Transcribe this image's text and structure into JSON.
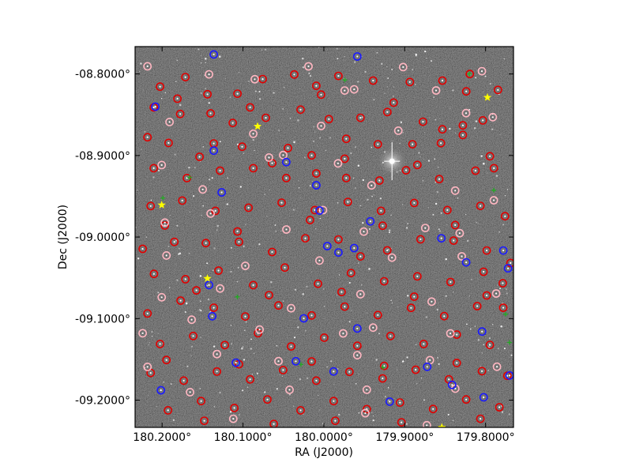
{
  "chart_data": {
    "type": "scatter",
    "title": "",
    "xlabel": "RA (J2000)",
    "ylabel": "Dec (J2000)",
    "xlim": [
      180.2334,
      179.7655
    ],
    "ylim": [
      -9.2334,
      -8.7665
    ],
    "x_ticks": [
      {
        "value": 180.2,
        "label": "180.2000°"
      },
      {
        "value": 180.1,
        "label": "180.1000°"
      },
      {
        "value": 180.0,
        "label": "180.0000°"
      },
      {
        "value": 179.9,
        "label": "179.9000°"
      },
      {
        "value": 179.8,
        "label": "179.8000°"
      }
    ],
    "y_ticks": [
      {
        "value": -8.8,
        "label": "-08.8000°"
      },
      {
        "value": -8.9,
        "label": "-08.9000°"
      },
      {
        "value": -9.0,
        "label": "-09.0000°"
      },
      {
        "value": -9.1,
        "label": "-09.1000°"
      },
      {
        "value": -9.2,
        "label": "-09.2000°"
      }
    ],
    "grid": false,
    "background": "star field image (grayscale)",
    "colors": {
      "red": "#e00000",
      "pink": "#ffb6c1",
      "blue": "#1a1aff",
      "green": "#22aa22",
      "yellow": "#ffff00",
      "white": "#ffffff"
    },
    "series": [
      {
        "marker": "circle",
        "color": "red",
        "points": [
          [
            180.2025,
            -8.8156
          ],
          [
            180.1712,
            -8.8039
          ],
          [
            180.1439,
            -8.8249
          ],
          [
            180.1068,
            -8.8242
          ],
          [
            180.0756,
            -8.8063
          ],
          [
            180.0366,
            -8.8007
          ],
          [
            180.0093,
            -8.8145
          ],
          [
            179.982,
            -8.8024
          ],
          [
            179.9391,
            -8.8082
          ],
          [
            179.8937,
            -8.8099
          ],
          [
            179.8534,
            -8.8082
          ],
          [
            179.8195,
            -8.8001
          ],
          [
            179.7847,
            -8.8196
          ],
          [
            180.2103,
            -8.841
          ],
          [
            180.1776,
            -8.8491
          ],
          [
            180.14,
            -8.8484
          ],
          [
            180.1127,
            -8.8601
          ],
          [
            180.0717,
            -8.8538
          ],
          [
            180.0288,
            -8.8438
          ],
          [
            179.9938,
            -8.8554
          ],
          [
            179.9547,
            -8.8538
          ],
          [
            179.9215,
            -8.8467
          ],
          [
            179.8774,
            -8.8586
          ],
          [
            179.8534,
            -8.8679
          ],
          [
            179.8281,
            -8.8631
          ],
          [
            179.8034,
            -8.857
          ],
          [
            180.2181,
            -8.8776
          ],
          [
            180.192,
            -8.8846
          ],
          [
            180.1361,
            -8.8853
          ],
          [
            180.101,
            -8.8892
          ],
          [
            180.0444,
            -8.8909
          ],
          [
            180.0151,
            -8.8999
          ],
          [
            179.9723,
            -8.8795
          ],
          [
            179.9332,
            -8.8862
          ],
          [
            179.8904,
            -8.8862
          ],
          [
            179.8553,
            -8.8849
          ],
          [
            179.8281,
            -8.8749
          ],
          [
            180.2103,
            -8.9156
          ],
          [
            180.1693,
            -8.9277
          ],
          [
            180.1283,
            -8.9186
          ],
          [
            180.0873,
            -8.9156
          ],
          [
            180.0464,
            -8.9277
          ],
          [
            180.0093,
            -8.922
          ],
          [
            179.9723,
            -8.9277
          ],
          [
            179.9313,
            -8.9307
          ],
          [
            179.8983,
            -8.9181
          ],
          [
            179.8573,
            -8.9289
          ],
          [
            179.8125,
            -8.9186
          ],
          [
            179.7897,
            -8.9156
          ],
          [
            180.2142,
            -8.962
          ],
          [
            180.1751,
            -8.9553
          ],
          [
            180.1341,
            -8.9679
          ],
          [
            180.0931,
            -8.964
          ],
          [
            180.0522,
            -8.9579
          ],
          [
            180.0112,
            -8.9669
          ],
          [
            179.9703,
            -8.9569
          ],
          [
            179.9293,
            -8.9679
          ],
          [
            179.8883,
            -8.9582
          ],
          [
            179.8473,
            -8.9669
          ],
          [
            179.8064,
            -8.9618
          ],
          [
            179.776,
            -8.9745
          ],
          [
            180.224,
            -9.0145
          ],
          [
            180.1849,
            -9.006
          ],
          [
            180.1459,
            -9.0074
          ],
          [
            180.1049,
            -9.006
          ],
          [
            180.0639,
            -9.0184
          ],
          [
            180.0229,
            -9.0015
          ],
          [
            179.982,
            -9.003
          ],
          [
            179.9547,
            -9.0238
          ],
          [
            179.9216,
            -9.0163
          ],
          [
            179.8805,
            -9.0028
          ],
          [
            179.8395,
            -9.0043
          ],
          [
            179.7986,
            -9.0165
          ],
          [
            179.7692,
            -9.0318
          ],
          [
            180.2101,
            -9.0452
          ],
          [
            180.1712,
            -9.0517
          ],
          [
            180.1302,
            -9.0411
          ],
          [
            180.0873,
            -9.0589
          ],
          [
            180.0483,
            -9.0374
          ],
          [
            180.0073,
            -9.0573
          ],
          [
            179.9664,
            -9.0441
          ],
          [
            179.9254,
            -9.0543
          ],
          [
            179.8844,
            -9.0482
          ],
          [
            179.8434,
            -9.0552
          ],
          [
            179.8025,
            -9.0426
          ],
          [
            179.7788,
            -9.0566
          ],
          [
            180.2181,
            -9.0937
          ],
          [
            180.1771,
            -9.0779
          ],
          [
            180.1361,
            -9.0866
          ],
          [
            180.0971,
            -9.0974
          ],
          [
            180.0561,
            -9.0839
          ],
          [
            180.0151,
            -9.0961
          ],
          [
            179.9742,
            -9.0853
          ],
          [
            179.9332,
            -9.0957
          ],
          [
            179.8922,
            -9.0868
          ],
          [
            179.8512,
            -9.097
          ],
          [
            179.8103,
            -9.0847
          ],
          [
            179.7782,
            -9.0866
          ],
          [
            180.2025,
            -9.1311
          ],
          [
            180.1615,
            -9.1213
          ],
          [
            180.1224,
            -9.1325
          ],
          [
            180.0814,
            -9.1179
          ],
          [
            180.0405,
            -9.1341
          ],
          [
            179.9995,
            -9.1234
          ],
          [
            179.9586,
            -9.1333
          ],
          [
            179.9176,
            -9.1213
          ],
          [
            179.8766,
            -9.1311
          ],
          [
            179.8356,
            -9.1196
          ],
          [
            179.7947,
            -9.1323
          ],
          [
            180.2142,
            -9.1667
          ],
          [
            180.1732,
            -9.1761
          ],
          [
            180.1322,
            -9.1649
          ],
          [
            180.0912,
            -9.1745
          ],
          [
            180.0503,
            -9.1631
          ],
          [
            180.0093,
            -9.1761
          ],
          [
            179.9684,
            -9.1653
          ],
          [
            179.9274,
            -9.1733
          ],
          [
            179.8864,
            -9.1627
          ],
          [
            179.8454,
            -9.1745
          ],
          [
            179.8045,
            -9.1644
          ],
          [
            179.7731,
            -9.1701
          ],
          [
            180.1927,
            -9.2125
          ],
          [
            180.1517,
            -9.2011
          ],
          [
            180.1107,
            -9.2096
          ],
          [
            180.0698,
            -9.1992
          ],
          [
            180.0288,
            -9.2125
          ],
          [
            179.9878,
            -9.2011
          ],
          [
            179.9469,
            -9.211
          ],
          [
            179.9059,
            -9.203
          ],
          [
            179.8649,
            -9.2108
          ],
          [
            179.824,
            -9.1992
          ],
          [
            179.783,
            -9.2087
          ],
          [
            180.1478,
            -9.2253
          ],
          [
            180.0619,
            -9.2292
          ],
          [
            179.9859,
            -9.2253
          ],
          [
            179.904,
            -9.2272
          ],
          [
            179.8064,
            -9.2228
          ],
          [
            180.181,
            -8.8303
          ],
          [
            180.0912,
            -8.841
          ],
          [
            180.0034,
            -8.8254
          ],
          [
            179.9137,
            -8.8352
          ],
          [
            179.8239,
            -8.8214
          ],
          [
            180.1537,
            -8.9016
          ],
          [
            180.0639,
            -8.9095
          ],
          [
            179.9742,
            -8.904
          ],
          [
            179.8844,
            -8.9116
          ],
          [
            179.7947,
            -8.901
          ],
          [
            180.1966,
            -8.9858
          ],
          [
            180.1068,
            -8.9932
          ],
          [
            180.0171,
            -8.9791
          ],
          [
            179.9273,
            -8.9861
          ],
          [
            179.8376,
            -8.9853
          ],
          [
            180.1576,
            -9.0653
          ],
          [
            180.0678,
            -9.0712
          ],
          [
            179.9781,
            -9.0674
          ],
          [
            179.8883,
            -9.0731
          ],
          [
            179.7986,
            -9.0716
          ],
          [
            180.1946,
            -9.1508
          ],
          [
            180.1049,
            -9.156
          ],
          [
            180.0151,
            -9.1525
          ],
          [
            179.9254,
            -9.158
          ],
          [
            179.8356,
            -9.1544
          ]
        ]
      },
      {
        "marker": "circle",
        "color": "pink",
        "points": [
          [
            180.2181,
            -8.7906
          ],
          [
            180.142,
            -8.8005
          ],
          [
            180.0854,
            -8.8065
          ],
          [
            180.019,
            -8.7907
          ],
          [
            179.9625,
            -8.8189
          ],
          [
            179.902,
            -8.7916
          ],
          [
            179.8612,
            -8.8203
          ],
          [
            179.8046,
            -8.7966
          ],
          [
            180.1908,
            -8.8589
          ],
          [
            180.0873,
            -8.8733
          ],
          [
            180.0034,
            -8.8638
          ],
          [
            179.9079,
            -8.8696
          ],
          [
            179.8241,
            -8.8481
          ],
          [
            179.7911,
            -8.853
          ],
          [
            180.2005,
            -8.9117
          ],
          [
            180.1498,
            -8.9416
          ],
          [
            180.0678,
            -8.9025
          ],
          [
            179.9825,
            -8.9097
          ],
          [
            179.941,
            -8.9367
          ],
          [
            179.8376,
            -8.9431
          ],
          [
            179.7898,
            -8.9549
          ],
          [
            180.1966,
            -8.9823
          ],
          [
            180.14,
            -8.9712
          ],
          [
            180.0463,
            -8.9907
          ],
          [
            180.001,
            -8.9669
          ],
          [
            179.9506,
            -8.9934
          ],
          [
            179.8746,
            -8.9889
          ],
          [
            179.832,
            -8.9953
          ],
          [
            180.1946,
            -9.0226
          ],
          [
            180.0971,
            -9.0353
          ],
          [
            180.0054,
            -9.0288
          ],
          [
            179.9157,
            -9.0252
          ],
          [
            179.8295,
            -9.0237
          ],
          [
            180.2005,
            -9.0739
          ],
          [
            180.1283,
            -9.0631
          ],
          [
            180.0405,
            -9.0873
          ],
          [
            179.9547,
            -9.0701
          ],
          [
            179.8667,
            -9.0792
          ],
          [
            179.7869,
            -9.0692
          ],
          [
            180.224,
            -9.1179
          ],
          [
            180.1635,
            -9.1014
          ],
          [
            180.0795,
            -9.1135
          ],
          [
            179.9761,
            -9.1181
          ],
          [
            179.9391,
            -9.1111
          ],
          [
            179.8435,
            -9.1181
          ],
          [
            180.2181,
            -9.1592
          ],
          [
            180.1322,
            -9.1435
          ],
          [
            180.0561,
            -9.1522
          ],
          [
            179.9586,
            -9.1449
          ],
          [
            179.8688,
            -9.151
          ],
          [
            179.7859,
            -9.159
          ],
          [
            180.1654,
            -9.1902
          ],
          [
            180.0424,
            -9.1873
          ],
          [
            179.9469,
            -9.1872
          ],
          [
            179.8375,
            -9.1858
          ],
          [
            180.112,
            -9.2228
          ],
          [
            179.9488,
            -9.216
          ],
          [
            179.8727,
            -9.2308
          ],
          [
            179.9742,
            -8.8204
          ],
          [
            180.0502,
            -8.8995
          ]
        ]
      },
      {
        "marker": "circle",
        "color": "blue",
        "points": [
          [
            180.2083,
            -8.8401
          ],
          [
            180.1361,
            -8.7761
          ],
          [
            179.9586,
            -8.7786
          ],
          [
            180.1361,
            -8.8941
          ],
          [
            180.0464,
            -8.9081
          ],
          [
            180.0093,
            -8.9365
          ],
          [
            180.1263,
            -8.9452
          ],
          [
            180.0053,
            -8.9675
          ],
          [
            179.9425,
            -8.9808
          ],
          [
            179.9625,
            -9.0135
          ],
          [
            179.9957,
            -9.0111
          ],
          [
            179.982,
            -9.0189
          ],
          [
            179.8547,
            -9.0015
          ],
          [
            179.824,
            -9.031
          ],
          [
            180.142,
            -9.0588
          ],
          [
            180.1381,
            -9.0971
          ],
          [
            180.0248,
            -9.0997
          ],
          [
            179.9586,
            -9.1121
          ],
          [
            180.1088,
            -9.1541
          ],
          [
            180.0346,
            -9.1523
          ],
          [
            179.8044,
            -9.1159
          ],
          [
            179.7703,
            -9.1698
          ],
          [
            180.2015,
            -9.1879
          ],
          [
            179.8414,
            -9.1813
          ],
          [
            179.8024,
            -9.1965
          ],
          [
            179.9879,
            -9.1648
          ],
          [
            179.7722,
            -9.0384
          ],
          [
            179.7781,
            -9.0165
          ],
          [
            179.8722,
            -9.1591
          ],
          [
            179.9186,
            -9.2018
          ]
        ]
      },
      {
        "marker": "plus",
        "color": "green",
        "points": [
          [
            179.82,
            -8.8
          ],
          [
            179.974,
            -8.8074
          ],
          [
            180.166,
            -8.9269
          ],
          [
            180.199,
            -8.9521
          ],
          [
            179.7898,
            -8.9426
          ],
          [
            180.107,
            -9.0734
          ],
          [
            179.7753,
            -9.0946
          ],
          [
            179.927,
            -9.1598
          ],
          [
            179.7704,
            -9.1293
          ],
          [
            180.0283,
            -9.1563
          ]
        ]
      },
      {
        "marker": "star",
        "color": "yellow",
        "points": [
          [
            179.7977,
            -8.8288
          ],
          [
            180.0819,
            -8.8642
          ],
          [
            180.2005,
            -8.9607
          ],
          [
            180.144,
            -9.0508
          ],
          [
            179.8541,
            -9.2334
          ]
        ]
      },
      {
        "marker": "bright-star",
        "color": "white",
        "points": [
          [
            179.9157,
            -8.9071
          ]
        ]
      }
    ]
  }
}
